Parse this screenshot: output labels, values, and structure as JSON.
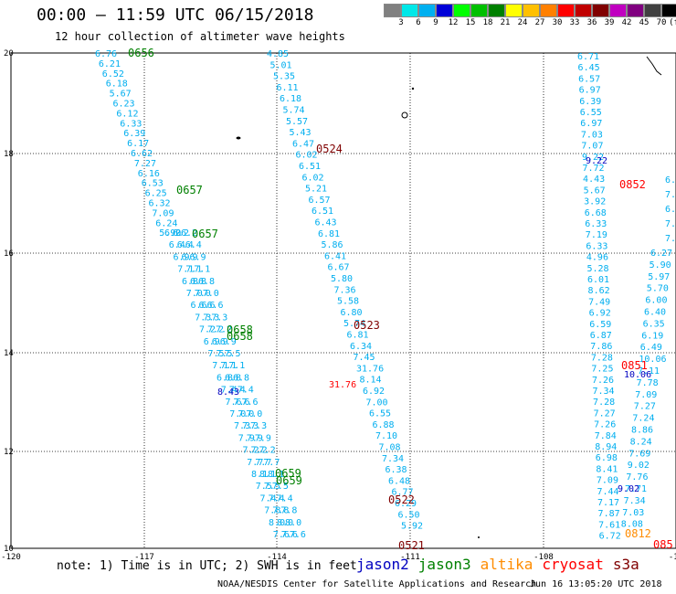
{
  "title": "00:00 — 11:59 UTC 06/15/2018",
  "subtitle": "12 hour collection of altimeter wave heights",
  "color_scale": {
    "colors": [
      "#808080",
      "#00e8e8",
      "#00b0f0",
      "#0000d8",
      "#00ff00",
      "#00c000",
      "#008000",
      "#ffff00",
      "#ffc000",
      "#ff8000",
      "#ff0000",
      "#c00000",
      "#800000",
      "#c000c0",
      "#800080",
      "#404040",
      "#000000"
    ],
    "labels": [
      "3",
      "6",
      "9",
      "12",
      "15",
      "18",
      "21",
      "24",
      "27",
      "30",
      "33",
      "36",
      "39",
      "42",
      "45",
      "70",
      "(ft)"
    ]
  },
  "map": {
    "lon_ticks": [
      "-120",
      "-117",
      "-114",
      "-111",
      "-108",
      "-10"
    ],
    "lat_ticks": [
      "20",
      "18",
      "16",
      "14",
      "12",
      "10"
    ],
    "grid": true,
    "pass_color": "#00aeef",
    "label_colors": {
      "jason2": "#0000c0",
      "jason3": "#008000",
      "altika": "#ff8c00",
      "cryosat": "#ff0000",
      "s3a": "#800000"
    }
  },
  "passes": {
    "p1_values": [
      "6.76",
      "6.21",
      "6.52",
      "6.18",
      "5.67",
      "6.23",
      "6.12",
      "6.33",
      "6.39",
      "6.17",
      "6.62",
      "7.27",
      "6.16",
      "6.53",
      "6.25",
      "6.32",
      "7.09",
      "6.24",
      "5.90"
    ],
    "p2_values": [
      "4.85",
      "5.01",
      "5.35",
      "6.11",
      "6.18",
      "5.74",
      "5.57",
      "5.43",
      "6.47",
      "6.02",
      "6.51",
      "6.02",
      "5.21",
      "6.57",
      "6.51",
      "6.43",
      "6.81",
      "5.86",
      "6.41",
      "6.67",
      "5.80",
      "7.36",
      "5.58",
      "6.80",
      "5.74",
      "6.81",
      "6.34",
      "7.45",
      "31.76",
      "8.14",
      "6.92",
      "7.00",
      "6.55",
      "6.88",
      "7.10",
      "7.08",
      "7.34",
      "6.38",
      "6.48",
      "6.77",
      "6.29",
      "6.50",
      "5.92"
    ],
    "p3_values": [
      "6.71",
      "6.45",
      "6.57",
      "6.97",
      "6.39",
      "6.55",
      "6.97",
      "7.03",
      "7.07",
      "9.22",
      "7.72",
      "4.43",
      "5.67",
      "3.92",
      "6.68",
      "6.33",
      "7.19",
      "6.33",
      "4.96",
      "5.28",
      "6.01",
      "8.62",
      "7.49",
      "6.92",
      "6.59",
      "6.87",
      "7.86",
      "7.28",
      "7.25",
      "7.26",
      "7.34",
      "7.28",
      "7.27",
      "7.26",
      "7.84",
      "8.94",
      "6.98",
      "8.41",
      "7.09",
      "7.44",
      "7.17",
      "7.87",
      "7.61",
      "6.72"
    ],
    "p4_values": [
      "6.27",
      "5.90",
      "5.97",
      "5.70",
      "6.00",
      "6.40",
      "6.35",
      "6.19",
      "6.49",
      "10.06",
      "7.11",
      "7.78",
      "7.09",
      "7.27",
      "7.24",
      "8.86",
      "8.24",
      "7.69",
      "9.02",
      "7.76",
      "7.71",
      "7.34",
      "7.03",
      "8.08"
    ],
    "p4_edge": [
      "6.",
      "7.",
      "6.",
      "7.",
      "7.1"
    ],
    "time_labels": [
      {
        "text": "0656",
        "series": "jason3"
      },
      {
        "text": "0657",
        "series": "jason3"
      },
      {
        "text": "0657",
        "series": "jason3"
      },
      {
        "text": "0658",
        "series": "jason3"
      },
      {
        "text": "0658",
        "series": "jason3"
      },
      {
        "text": "0659",
        "series": "jason3"
      },
      {
        "text": "0659",
        "series": "jason3"
      },
      {
        "text": "0524",
        "series": "s3a"
      },
      {
        "text": "0523",
        "series": "s3a"
      },
      {
        "text": "0522",
        "series": "s3a"
      },
      {
        "text": "0521",
        "series": "s3a"
      },
      {
        "text": "0852",
        "series": "cryosat"
      },
      {
        "text": "0851",
        "series": "cryosat"
      },
      {
        "text": "0812",
        "series": "altika"
      },
      {
        "text": "085",
        "series": "cryosat"
      }
    ],
    "special_values": [
      {
        "text": "8.43",
        "series": "jason2"
      },
      {
        "text": "31.76",
        "series": "cryosat"
      },
      {
        "text": "10.06",
        "series": "jason2"
      },
      {
        "text": "9.02",
        "series": "jason2"
      },
      {
        "text": "9.22",
        "series": "jason2"
      }
    ]
  },
  "footnote": "note: 1) Time is in UTC; 2) SWH is in feet",
  "legend": [
    {
      "name": "jason2",
      "color": "#0000c0"
    },
    {
      "name": "jason3",
      "color": "#008000"
    },
    {
      "name": "altika",
      "color": "#ff8c00"
    },
    {
      "name": "cryosat",
      "color": "#ff0000"
    },
    {
      "name": "s3a",
      "color": "#800000"
    }
  ],
  "credit": "NOAA/NESDIS Center for Satellite Applications and Research",
  "timestamp": "Jun 16 13:05:20 UTC 2018"
}
